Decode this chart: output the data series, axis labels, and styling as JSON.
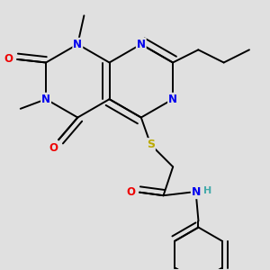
{
  "background_color": "#e0e0e0",
  "atom_colors": {
    "C": "#000000",
    "N": "#0000ee",
    "O": "#ee0000",
    "S": "#bbaa00",
    "H": "#44aaaa"
  },
  "bond_color": "#000000",
  "bond_width": 1.4,
  "fig_size": [
    3.0,
    3.0
  ],
  "dpi": 100,
  "font_size": 8.5
}
